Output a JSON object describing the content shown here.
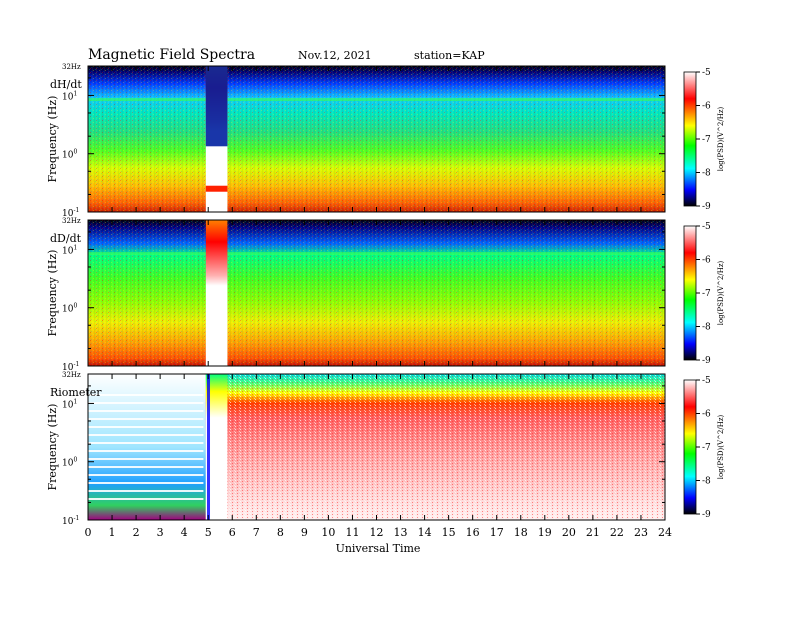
{
  "header": {
    "title": "Magnetic  Field  Spectra",
    "date": "Nov.12, 2021",
    "station": "station=KAP"
  },
  "chart_data": [
    {
      "type": "heatmap",
      "panel_label": "dH/dt",
      "ylabel": "Frequency  (Hz)",
      "y_top_label": "32Hz",
      "y_ticks": [
        {
          "base": "10",
          "exp": "1"
        },
        {
          "base": "10",
          "exp": "0"
        },
        {
          "base": "10",
          "exp": "-1"
        }
      ],
      "colorbar": {
        "ticks": [
          "-5",
          "-6",
          "-7",
          "-8",
          "-9"
        ],
        "label": "log(PSD)(V^2/Hz)"
      }
    },
    {
      "type": "heatmap",
      "panel_label": "dD/dt",
      "ylabel": "Frequency  (Hz)",
      "y_top_label": "32Hz",
      "y_ticks": [
        {
          "base": "10",
          "exp": "1"
        },
        {
          "base": "10",
          "exp": "0"
        },
        {
          "base": "10",
          "exp": "-1"
        }
      ],
      "colorbar": {
        "ticks": [
          "-5",
          "-6",
          "-7",
          "-8",
          "-9"
        ],
        "label": "log(PSD)(V^2/Hz)"
      }
    },
    {
      "type": "heatmap",
      "panel_label": "Riometer",
      "ylabel": "Frequency  (Hz)",
      "y_top_label": "32Hz",
      "y_ticks": [
        {
          "base": "10",
          "exp": "1"
        },
        {
          "base": "10",
          "exp": "0"
        },
        {
          "base": "10",
          "exp": "-1"
        }
      ],
      "colorbar": {
        "ticks": [
          "-5",
          "-6",
          "-7",
          "-8",
          "-9"
        ],
        "label": "log(PSD)(V^2/Hz)"
      }
    }
  ],
  "x_axis": {
    "label": "Universal  Time",
    "ticks": [
      "0",
      "1",
      "2",
      "3",
      "4",
      "5",
      "6",
      "7",
      "8",
      "9",
      "10",
      "11",
      "12",
      "13",
      "14",
      "15",
      "16",
      "17",
      "18",
      "19",
      "20",
      "21",
      "22",
      "23",
      "24"
    ],
    "range": [
      0,
      24
    ]
  },
  "colors": {
    "scale": [
      "#ffffff",
      "#ff0000",
      "#ffff00",
      "#00ff00",
      "#00ffff",
      "#0000ff",
      "#000000"
    ]
  }
}
